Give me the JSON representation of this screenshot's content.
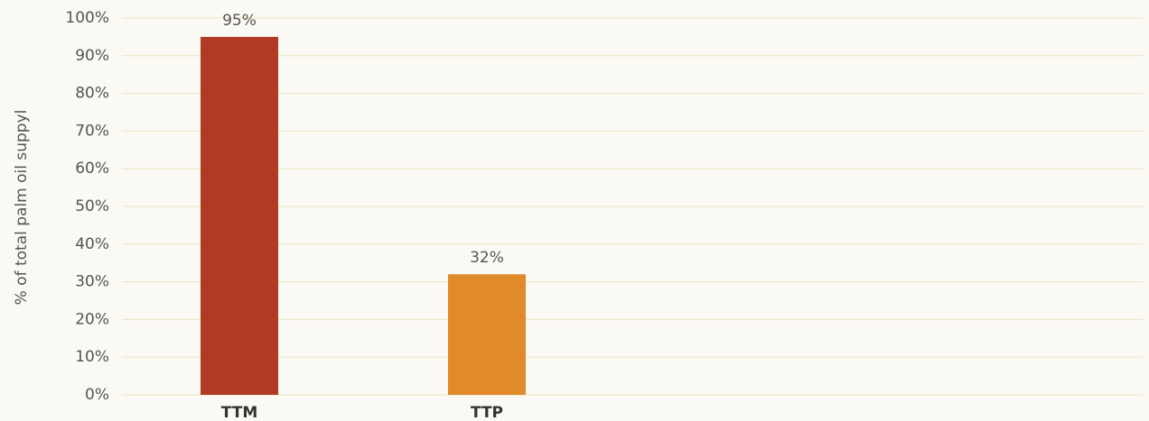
{
  "chart_data": {
    "type": "bar",
    "y_label": "% of total palm oil suppyl",
    "categories": [
      "TTM",
      "TTP"
    ],
    "values": [
      95,
      32
    ],
    "value_labels": [
      "95%",
      "32%"
    ],
    "colors": [
      "#b03a24",
      "#e08a2a"
    ],
    "ylim": [
      0,
      100
    ],
    "yticks": [
      {
        "value": 0,
        "label": "0%"
      },
      {
        "value": 10,
        "label": "10%"
      },
      {
        "value": 20,
        "label": "20%"
      },
      {
        "value": 30,
        "label": "30%"
      },
      {
        "value": 40,
        "label": "40%"
      },
      {
        "value": 50,
        "label": "50%"
      },
      {
        "value": 60,
        "label": "60%"
      },
      {
        "value": 70,
        "label": "70%"
      },
      {
        "value": 80,
        "label": "80%"
      },
      {
        "value": 90,
        "label": "90%"
      },
      {
        "value": 100,
        "label": "100%"
      }
    ],
    "grid": true
  }
}
